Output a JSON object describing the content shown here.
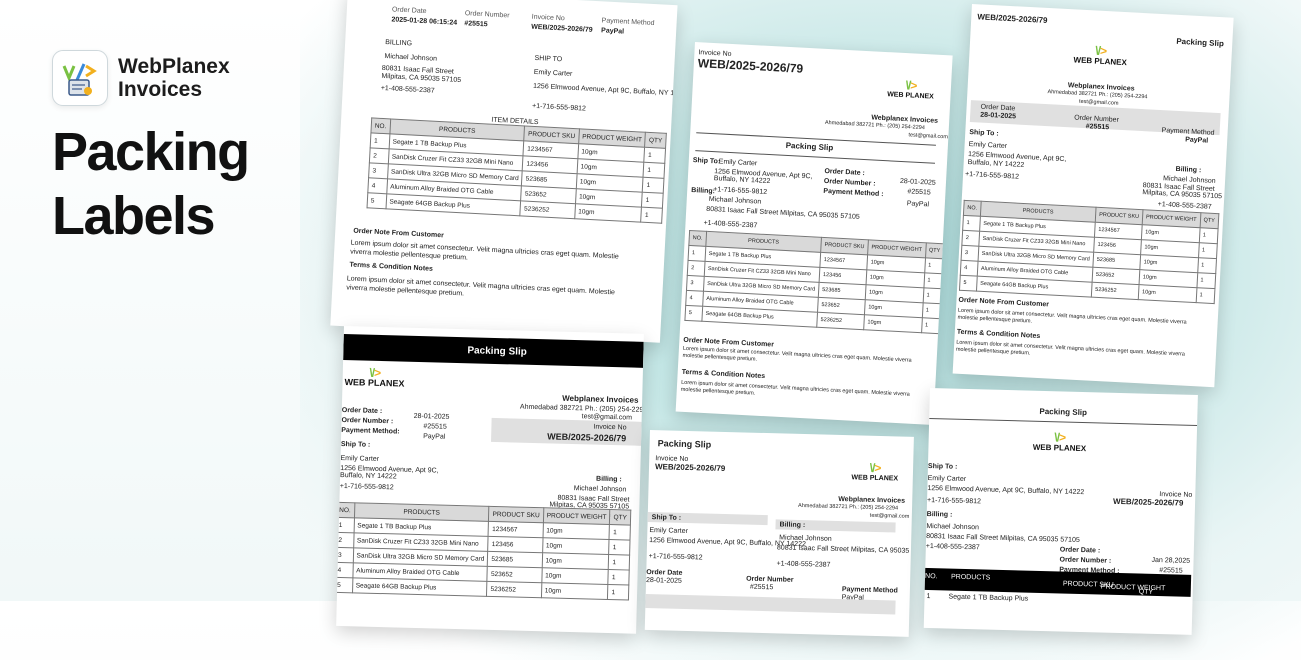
{
  "brand": {
    "name_line1": "WebPlanex",
    "name_line2": "Invoices"
  },
  "hero": {
    "line1": "Packing",
    "line2": "Labels"
  },
  "colors": {
    "accent_green": "#7ac143",
    "accent_blue": "#3b8ad9",
    "accent_yellow": "#f2b01e",
    "teal_bg": "#a9dada"
  },
  "common": {
    "packing_slip": "Packing Slip",
    "logo_text": "WEB PLANEX",
    "company": "Webplanex Invoices",
    "address": "Ahmedabad 382721 Ph.: (205) 254-2294",
    "email": "test@gmail.com",
    "invoice_no_label": "Invoice No",
    "invoice_no": "WEB/2025-2026/79",
    "order_date_label": "Order Date",
    "order_date_label_colon": "Order Date :",
    "order_number_label": "Order Number",
    "order_number_label_colon": "Order Number :",
    "payment_method_label": "Payment Method",
    "payment_method_label_colon": "Payment Method :",
    "payment_method_label_colon2": "Payment Method:",
    "order_date": "28-01-2025",
    "order_date_alt": "Jan 28,2025",
    "order_datetime": "2025-01-28 06:15:24",
    "order_number": "#25515",
    "payment_method": "PayPal",
    "billing_label": "BILLING",
    "billing_label2": "Billing :",
    "billing_label3": "Billing:",
    "ship_label": "SHIP TO",
    "ship_label2": "Ship To :",
    "ship_label3": "Ship To:",
    "billing_name": "Michael Johnson",
    "billing_addr1": "80831 Isaac Fall Street",
    "billing_addr2": "Milpitas, CA 95035 57105",
    "billing_addr_full": "80831 Isaac Fall Street Milpitas, CA 95035 57105",
    "billing_phone": "+1-408-555-2387",
    "ship_name": "Emily Carter",
    "ship_addr": "1256 Elmwood Avenue, Apt 9C, Buffalo, NY 14222",
    "ship_addr1": "1256 Elmwood Avenue, Apt 9C,",
    "ship_addr2": "Buffalo, NY 14222",
    "ship_phone": "+1-716-555-9812",
    "item_details": "ITEM DETAILS",
    "col_no": "NO.",
    "col_products": "PRODUCTS",
    "col_sku": "PRODUCT SKU",
    "col_weight": "PRODUCT WEIGHT",
    "col_qty": "QTY",
    "note_title": "Order Note From Customer",
    "terms_title": "Terms & Condition Notes",
    "lorem": "Lorem ipsum dolor sit amet consectetur. Velit magna ultricies cras eget quam. Molestie viverra molestie pellentesque pretium."
  },
  "items": [
    {
      "no": "1",
      "product": "Segate 1 TB Backup Plus",
      "sku": "1234567",
      "weight": "10gm",
      "qty": "1"
    },
    {
      "no": "2",
      "product": "SanDisk Cruzer Fit CZ33 32GB Mini Nano",
      "sku": "123456",
      "weight": "10gm",
      "qty": "1"
    },
    {
      "no": "3",
      "product": "SanDisk Ultra 32GB Micro SD Memory Card",
      "sku": "523685",
      "weight": "10gm",
      "qty": "1"
    },
    {
      "no": "4",
      "product": "Aluminum Alloy Braided OTG Cable",
      "sku": "523652",
      "weight": "10gm",
      "qty": "1"
    },
    {
      "no": "5",
      "product": "Seagate 64GB Backup Plus",
      "sku": "5236252",
      "weight": "10gm",
      "qty": "1"
    }
  ]
}
